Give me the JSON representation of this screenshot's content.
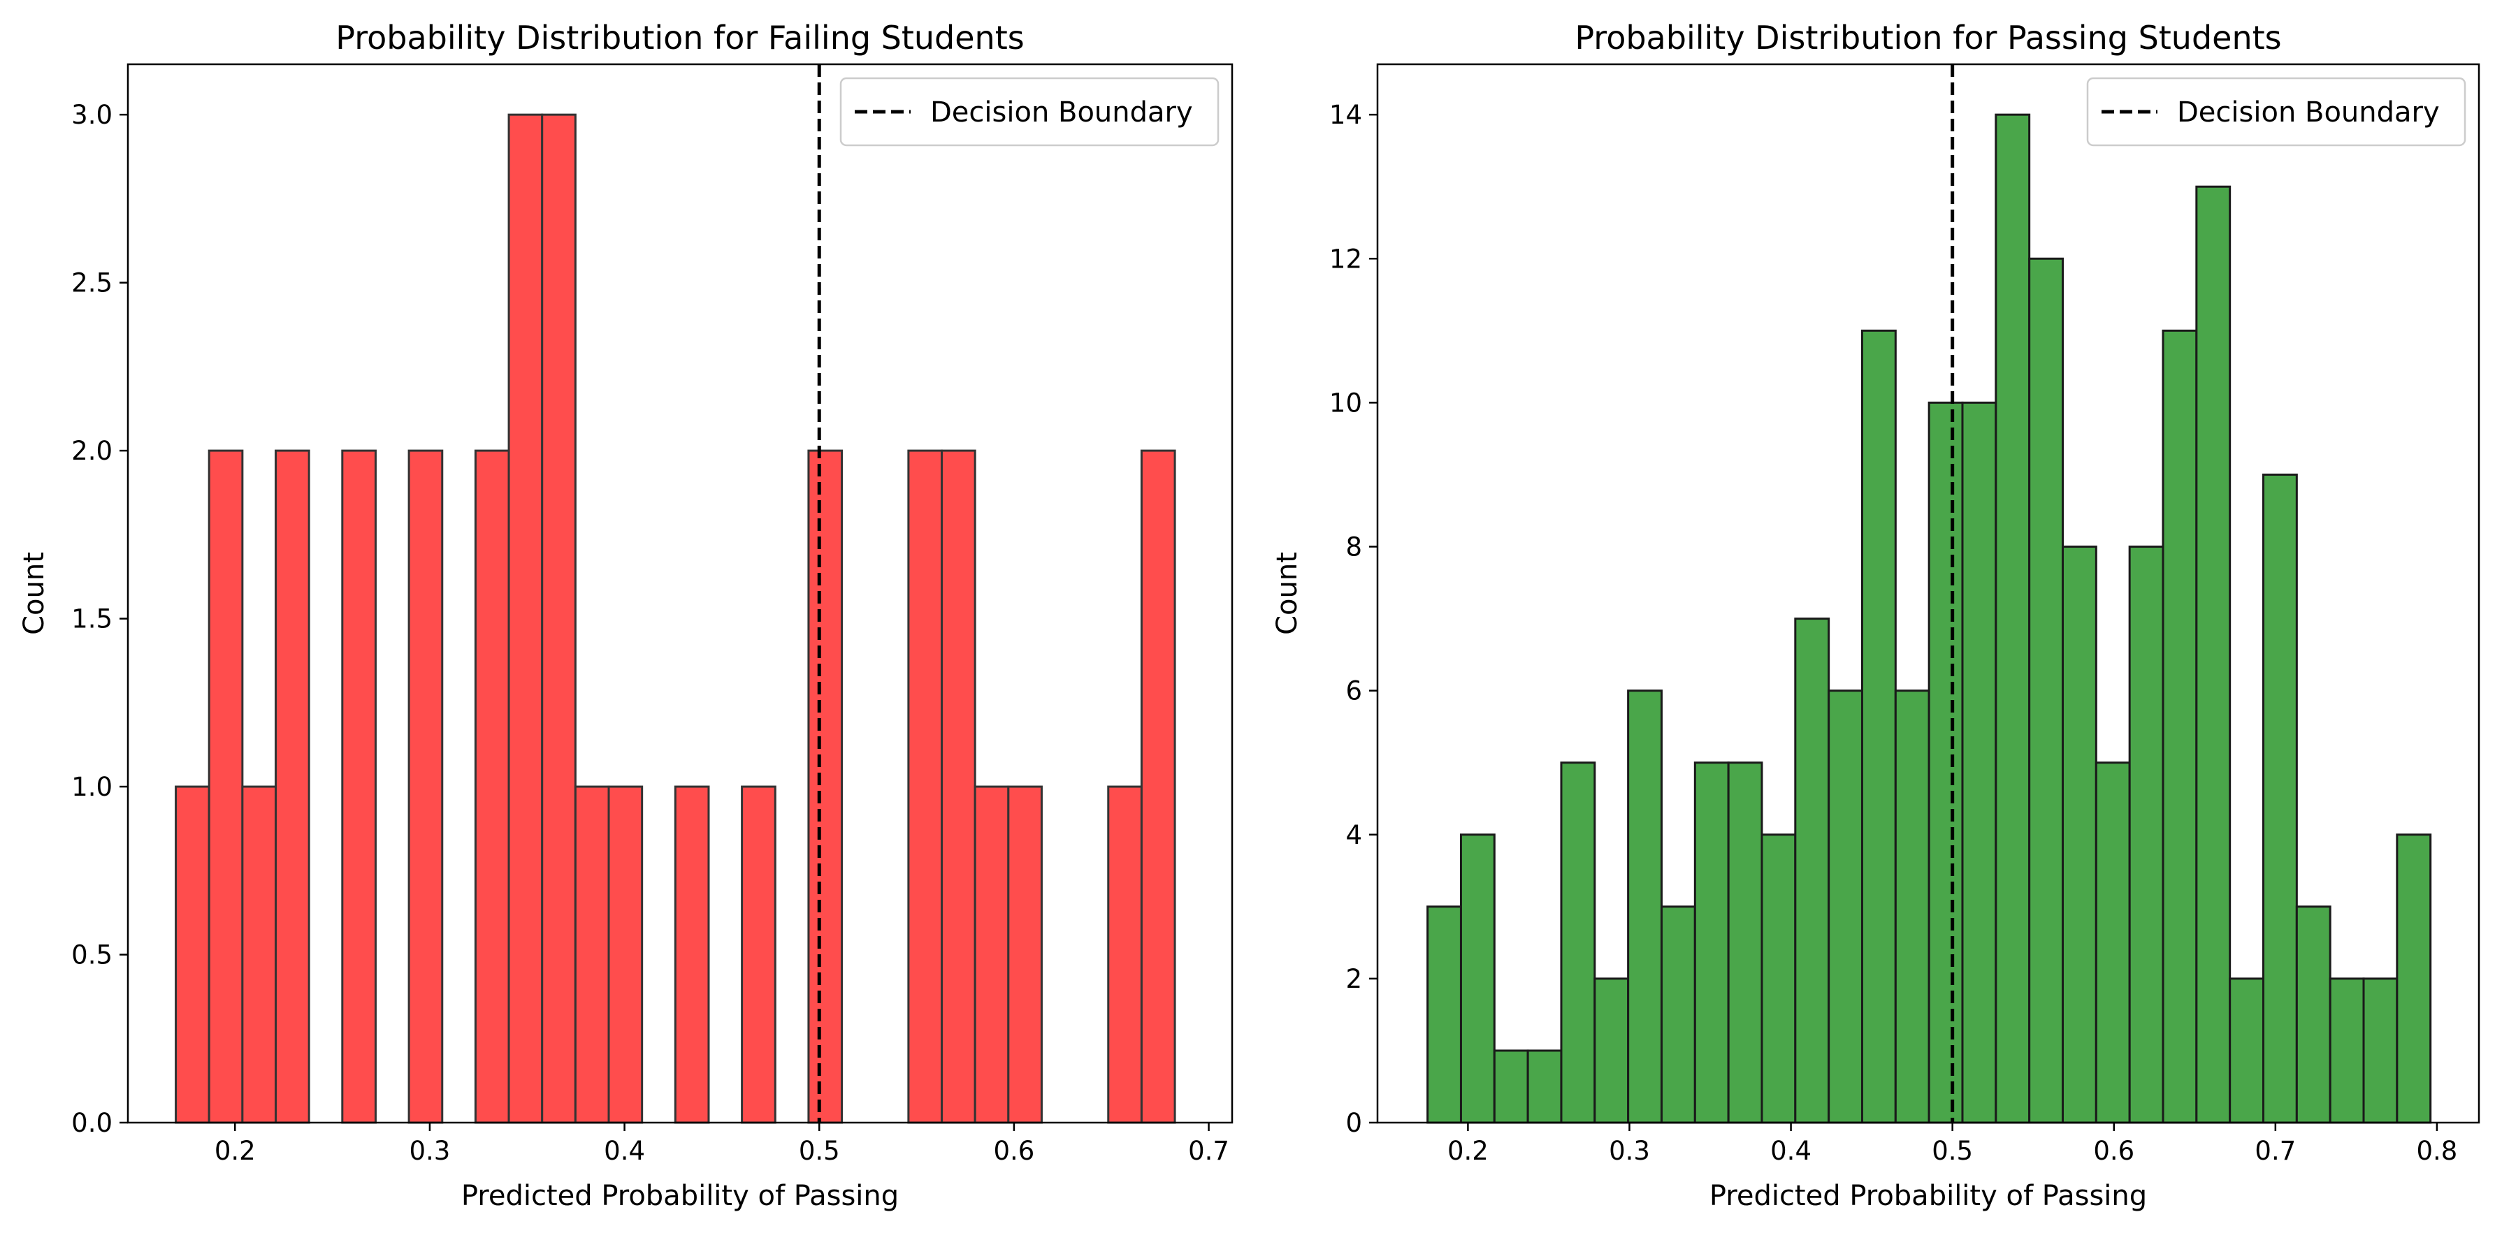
{
  "chart_data": [
    {
      "type": "bar",
      "title": "Probability Distribution for Failing Students",
      "xlabel": "Predicted Probability of Passing",
      "ylabel": "Count",
      "xlim": [
        0.145,
        0.712
      ],
      "ylim": [
        0,
        3.15
      ],
      "xticks": [
        "0.2",
        "0.3",
        "0.4",
        "0.5",
        "0.6",
        "0.7"
      ],
      "yticks": [
        "0.0",
        "0.5",
        "1.0",
        "1.5",
        "2.0",
        "2.5",
        "3.0"
      ],
      "bin_edges": [
        0.1696,
        0.1867,
        0.2038,
        0.2209,
        0.238,
        0.2551,
        0.2722,
        0.2893,
        0.3064,
        0.3235,
        0.3406,
        0.3577,
        0.3748,
        0.3919,
        0.409,
        0.4261,
        0.4432,
        0.4603,
        0.4774,
        0.4945,
        0.5116,
        0.5287,
        0.5458,
        0.5629,
        0.58,
        0.5971,
        0.6142,
        0.6313,
        0.6484,
        0.6655,
        0.6826
      ],
      "counts": [
        1,
        2,
        1,
        2,
        0,
        2,
        0,
        2,
        0,
        2,
        3,
        3,
        1,
        1,
        0,
        1,
        0,
        1,
        0,
        2,
        0,
        0,
        2,
        2,
        1,
        1,
        0,
        0,
        1,
        2
      ],
      "bar_color": "#ff4d4d",
      "edge_color": "#333333",
      "decision_boundary": 0.5,
      "legend": {
        "label": "Decision Boundary",
        "position": "upper right"
      }
    },
    {
      "type": "bar",
      "title": "Probability Distribution for Passing Students",
      "xlabel": "Predicted Probability of Passing",
      "ylabel": "Count",
      "xlim": [
        0.144,
        0.826
      ],
      "ylim": [
        0,
        14.7
      ],
      "xticks": [
        "0.2",
        "0.3",
        "0.4",
        "0.5",
        "0.6",
        "0.7",
        "0.8"
      ],
      "yticks": [
        "0",
        "2",
        "4",
        "6",
        "8",
        "10",
        "12",
        "14"
      ],
      "bin_edges": [
        0.175,
        0.1957,
        0.2164,
        0.2371,
        0.2578,
        0.2785,
        0.2992,
        0.3199,
        0.3406,
        0.3613,
        0.382,
        0.4027,
        0.4234,
        0.4441,
        0.4648,
        0.4855,
        0.5062,
        0.5269,
        0.5476,
        0.5683,
        0.589,
        0.6097,
        0.6304,
        0.6511,
        0.6718,
        0.6925,
        0.7132,
        0.7339,
        0.7546,
        0.7753,
        0.796
      ],
      "counts": [
        3,
        4,
        1,
        1,
        5,
        2,
        6,
        3,
        5,
        5,
        4,
        7,
        6,
        11,
        6,
        10,
        10,
        14,
        12,
        8,
        5,
        8,
        11,
        13,
        2,
        9,
        3,
        2,
        2,
        4
      ],
      "bar_color": "#4aa64a",
      "edge_color": "#1a1a1a",
      "decision_boundary": 0.5,
      "legend": {
        "label": "Decision Boundary",
        "position": "upper right"
      }
    }
  ]
}
